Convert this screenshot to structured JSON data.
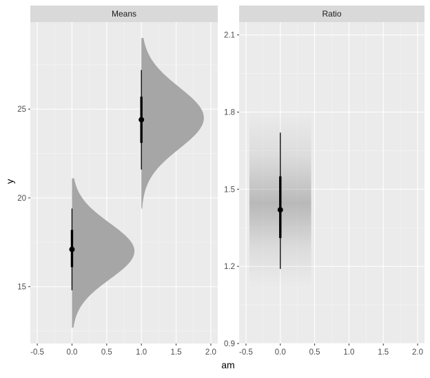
{
  "chart_data": {
    "type": "faceted-interval",
    "xlabel": "am",
    "ylabel": "y",
    "panels": [
      {
        "strip": "Means",
        "xlim": [
          -0.6,
          2.1
        ],
        "xticks": [
          "-0.5",
          "0.0",
          "0.5",
          "1.0",
          "1.5",
          "2.0"
        ],
        "xtick_values": [
          -0.5,
          0,
          0.5,
          1.0,
          1.5,
          2.0
        ],
        "ylim": [
          11.8,
          29.9
        ],
        "yticks": [
          "15",
          "20",
          "25"
        ],
        "ytick_values": [
          15,
          20,
          25
        ],
        "geom": "half-eye",
        "groups": [
          {
            "x": 0,
            "point": 17.1,
            "inner": [
              16.1,
              18.2
            ],
            "outer": [
              14.8,
              19.4
            ],
            "density_range": [
              12.7,
              21.1
            ],
            "density_peak": 17.0
          },
          {
            "x": 1,
            "point": 24.4,
            "inner": [
              23.1,
              25.7
            ],
            "outer": [
              21.6,
              27.2
            ],
            "density_range": [
              19.4,
              29.0
            ],
            "density_peak": 24.5
          }
        ]
      },
      {
        "strip": "Ratio",
        "xlim": [
          -0.6,
          2.1
        ],
        "xticks": [
          "-0.5",
          "0.0",
          "0.5",
          "1.0",
          "1.5",
          "2.0"
        ],
        "xtick_values": [
          -0.5,
          0,
          0.5,
          1.0,
          1.5,
          2.0
        ],
        "ylim": [
          0.9,
          2.15
        ],
        "yticks": [
          "0.9",
          "1.2",
          "1.5",
          "1.8",
          "2.1"
        ],
        "ytick_values": [
          0.9,
          1.2,
          1.5,
          1.8,
          2.1
        ],
        "geom": "gradient-interval",
        "groups": [
          {
            "x": 0,
            "point": 1.42,
            "inner": [
              1.31,
              1.55
            ],
            "outer": [
              1.19,
              1.72
            ],
            "gradient_range": [
              1.12,
              1.8
            ],
            "gradient_peak": 1.42
          }
        ]
      }
    ]
  },
  "colors": {
    "panel_bg": "#ebebeb",
    "grid_major": "#ffffff",
    "grid_minor": "#f5f5f5",
    "strip_bg": "#d9d9d9",
    "density_fill": "#a6a6a6",
    "interval": "#000000",
    "tick_text": "#4d4d4d",
    "strip_text": "#1a1a1a"
  }
}
